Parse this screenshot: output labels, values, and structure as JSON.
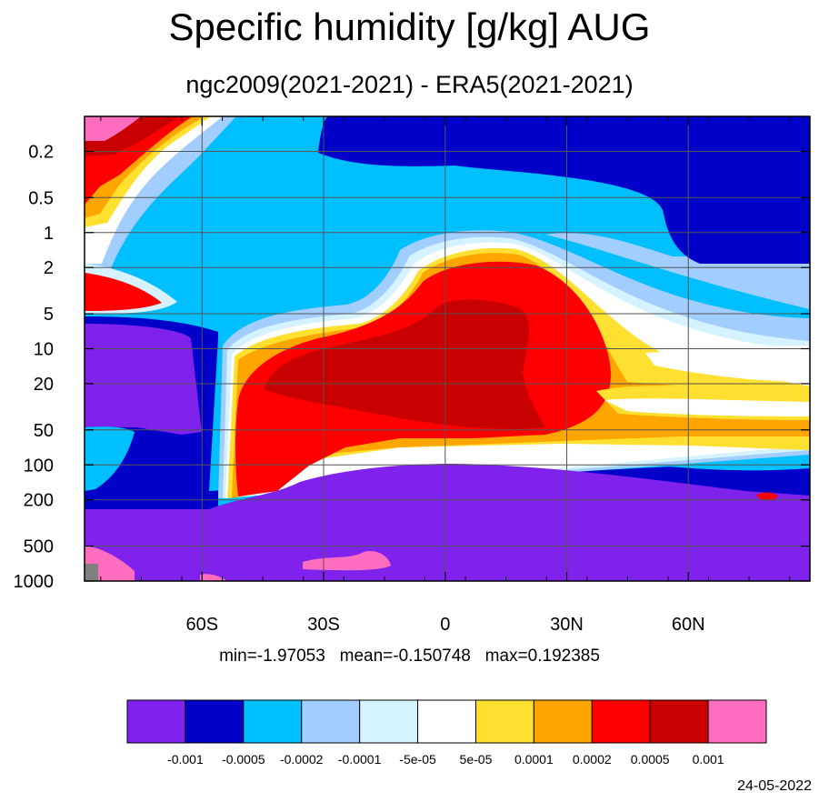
{
  "chart_data": {
    "type": "contour",
    "title": "Specific humidity [g/kg] AUG",
    "subtitle": "ngc2009(2021-2021) - ERA5(2021-2021)",
    "x_ticks": [
      {
        "value": -60,
        "label": "60S"
      },
      {
        "value": -30,
        "label": "30S"
      },
      {
        "value": 0,
        "label": "0"
      },
      {
        "value": 30,
        "label": "30N"
      },
      {
        "value": 60,
        "label": "60N"
      }
    ],
    "xlim": [
      -89,
      90
    ],
    "y_scale": "log",
    "y_reversed": true,
    "y_ticks": [
      {
        "value": 0.2,
        "label": "0.2"
      },
      {
        "value": 0.5,
        "label": "0.5"
      },
      {
        "value": 1,
        "label": "1"
      },
      {
        "value": 2,
        "label": "2"
      },
      {
        "value": 5,
        "label": "5"
      },
      {
        "value": 10,
        "label": "10"
      },
      {
        "value": 20,
        "label": "20"
      },
      {
        "value": 50,
        "label": "50"
      },
      {
        "value": 100,
        "label": "100"
      },
      {
        "value": 200,
        "label": "200"
      },
      {
        "value": 500,
        "label": "500"
      },
      {
        "value": 1000,
        "label": "1000"
      }
    ],
    "ylim": [
      0.1,
      1000
    ],
    "grid": true,
    "stats": {
      "min": "-1.97053",
      "mean": "-0.150748",
      "max": "0.192385"
    },
    "stats_text": "min=-1.97053   mean=-0.150748   max=0.192385",
    "colorbar": {
      "colors": [
        "#7f22ec",
        "#0000c8",
        "#00bfff",
        "#a2cdff",
        "#d4f2ff",
        "#ffffff",
        "#ffe030",
        "#ffa500",
        "#ff0000",
        "#c80000",
        "#ff6ebe"
      ],
      "levels": [
        "-0.001",
        "-0.0005",
        "-0.0002",
        "-0.0001",
        "-5e-05",
        "5e-05",
        "0.0001",
        "0.0002",
        "0.0005",
        "0.001"
      ]
    },
    "missing_color": "#808080"
  },
  "footer": {
    "date": "24-05-2022"
  }
}
